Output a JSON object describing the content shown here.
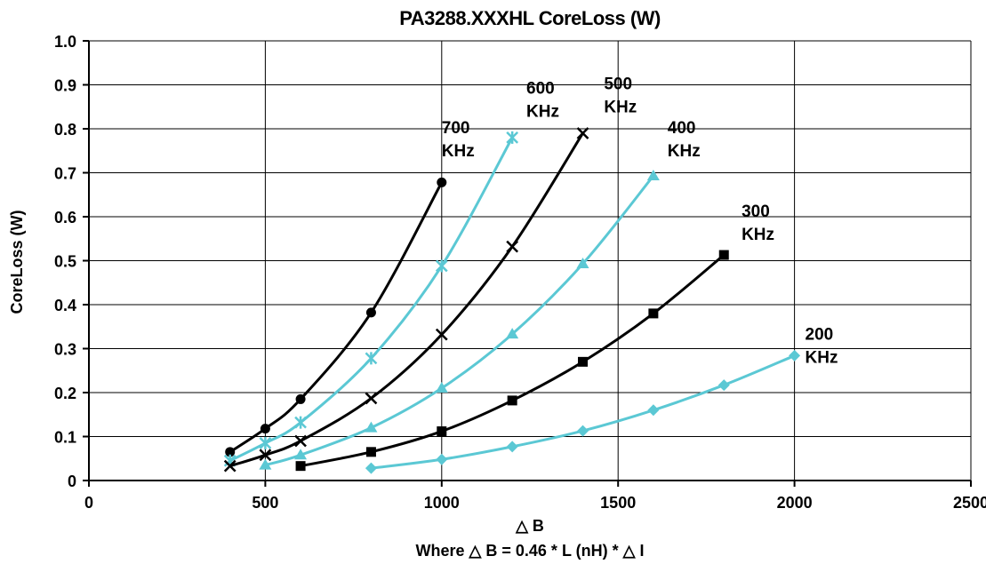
{
  "chart_data": {
    "type": "line",
    "title": "PA3288.XXXHL CoreLoss (W)",
    "xlabel": "△ B",
    "xlabel_note": "Where  △ B = 0.46 * L (nH) * △ I",
    "ylabel": "CoreLoss (W)",
    "xlim": [
      0,
      2500
    ],
    "ylim": [
      0,
      1.0
    ],
    "x_ticks": [
      0,
      500,
      1000,
      1500,
      2000,
      2500
    ],
    "y_ticks": [
      "0",
      "0.1",
      "0.2",
      "0.3",
      "0.4",
      "0.5",
      "0.6",
      "0.7",
      "0.8",
      "0.9",
      "1.0"
    ],
    "grid": true,
    "series": [
      {
        "name": "700 KHz",
        "color": "#000000",
        "marker": "circle",
        "x": [
          400,
          500,
          600,
          800,
          1000
        ],
        "y": [
          0.065,
          0.118,
          0.185,
          0.382,
          0.678
        ]
      },
      {
        "name": "600 KHz",
        "color": "#5bc8d4",
        "marker": "asterisk",
        "x": [
          400,
          500,
          600,
          800,
          1000,
          1200
        ],
        "y": [
          0.045,
          0.085,
          0.132,
          0.278,
          0.488,
          0.78
        ]
      },
      {
        "name": "500 KHz",
        "color": "#000000",
        "marker": "x",
        "x": [
          400,
          500,
          600,
          800,
          1000,
          1200,
          1400
        ],
        "y": [
          0.033,
          0.058,
          0.09,
          0.187,
          0.332,
          0.532,
          0.79
        ]
      },
      {
        "name": "400 KHz",
        "color": "#5bc8d4",
        "marker": "triangle",
        "x": [
          500,
          600,
          800,
          1000,
          1200,
          1400,
          1600
        ],
        "y": [
          0.035,
          0.058,
          0.12,
          0.21,
          0.333,
          0.493,
          0.693
        ]
      },
      {
        "name": "300 KHz",
        "color": "#000000",
        "marker": "square",
        "x": [
          600,
          800,
          1000,
          1200,
          1400,
          1600,
          1800
        ],
        "y": [
          0.033,
          0.065,
          0.112,
          0.182,
          0.27,
          0.38,
          0.513
        ]
      },
      {
        "name": "200 KHz",
        "color": "#5bc8d4",
        "marker": "diamond",
        "x": [
          800,
          1000,
          1200,
          1400,
          1600,
          1800,
          2000
        ],
        "y": [
          0.028,
          0.048,
          0.077,
          0.113,
          0.16,
          0.217,
          0.284
        ]
      }
    ],
    "annotations": [
      {
        "series": 0,
        "line1": "700",
        "line2": "KHz",
        "x": 1000,
        "y": 0.79
      },
      {
        "series": 1,
        "line1": "600",
        "line2": "KHz",
        "x": 1240,
        "y": 0.88
      },
      {
        "series": 2,
        "line1": "500",
        "line2": "KHz",
        "x": 1460,
        "y": 0.89
      },
      {
        "series": 3,
        "line1": "400",
        "line2": "KHz",
        "x": 1640,
        "y": 0.79
      },
      {
        "series": 4,
        "line1": "300",
        "line2": "KHz",
        "x": 1850,
        "y": 0.6
      },
      {
        "series": 5,
        "line1": "200",
        "line2": "KHz",
        "x": 2030,
        "y": 0.32
      }
    ]
  }
}
